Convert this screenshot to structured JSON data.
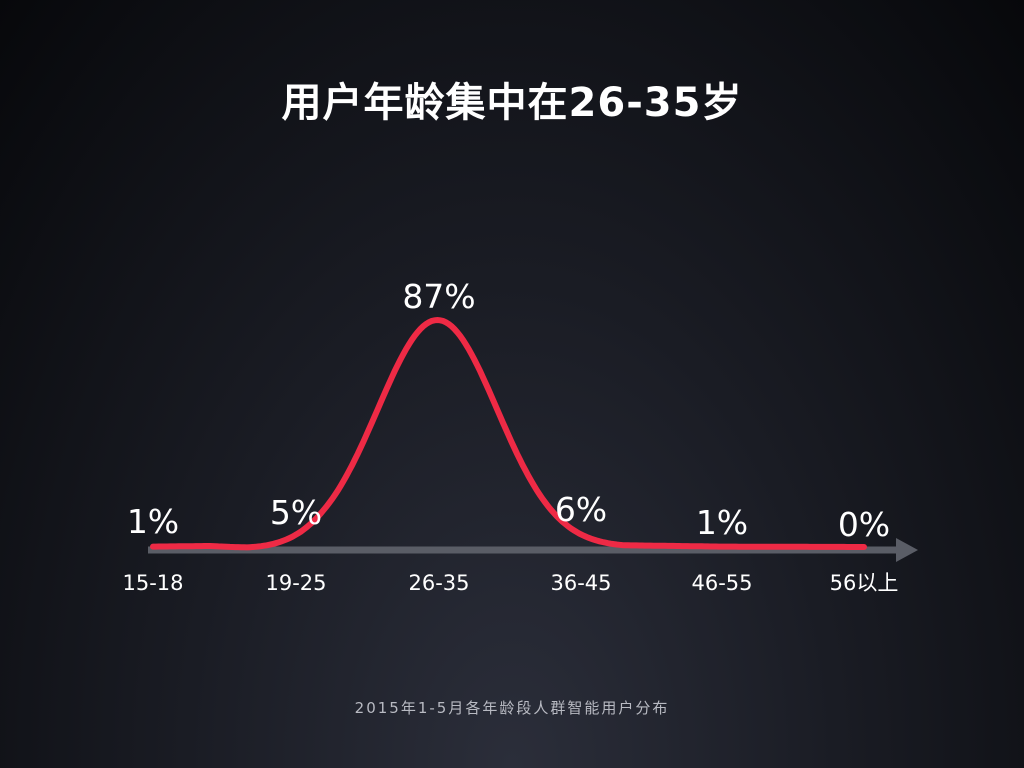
{
  "chart_data": {
    "type": "line",
    "title": "用户年龄集中在26-35岁",
    "categories": [
      "15-18",
      "19-25",
      "26-35",
      "36-45",
      "46-55",
      "56以上"
    ],
    "values": [
      1,
      5,
      87,
      6,
      1,
      0
    ],
    "data_labels": [
      "1%",
      "5%",
      "87%",
      "6%",
      "1%",
      "0%"
    ],
    "caption": "2015年1-5月各年龄段人群智能用户分布",
    "ylim": [
      0,
      100
    ],
    "grid": false,
    "colors": {
      "line": "#ee2a45",
      "axis": "#5a5d66",
      "text": "#ffffff"
    }
  }
}
